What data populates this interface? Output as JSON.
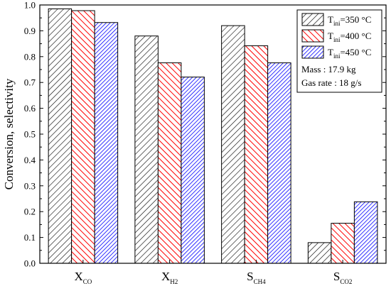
{
  "chart_data": {
    "type": "bar",
    "ylabel": "Conversion, selectivity",
    "ylim": [
      0,
      1.0
    ],
    "yticks": [
      0.0,
      0.1,
      0.2,
      0.3,
      0.4,
      0.5,
      0.6,
      0.7,
      0.8,
      0.9,
      1.0
    ],
    "ytick_labels": [
      "0.0",
      "0.1",
      "0.2",
      "0.3",
      "0.4",
      "0.5",
      "0.6",
      "0.7",
      "0.8",
      "0.9",
      "1.0"
    ],
    "categories": [
      {
        "main": "X",
        "sub": "CO"
      },
      {
        "main": "X",
        "sub": "H2"
      },
      {
        "main": "S",
        "sub": "CH4"
      },
      {
        "main": "S",
        "sub": "CO2"
      }
    ],
    "series": [
      {
        "name": "T_ini=350 °C",
        "label_main": "T",
        "label_sub": "ini",
        "label_rest": "=350 °C",
        "color": "#000000",
        "values": [
          0.985,
          0.88,
          0.92,
          0.08
        ]
      },
      {
        "name": "T_ini=400 °C",
        "label_main": "T",
        "label_sub": "ini",
        "label_rest": "=400 °C",
        "color": "#ff0000",
        "values": [
          0.978,
          0.776,
          0.842,
          0.155
        ]
      },
      {
        "name": "T_ini=450 °C",
        "label_main": "T",
        "label_sub": "ini",
        "label_rest": "=450 °C",
        "color": "#0000ff",
        "values": [
          0.932,
          0.721,
          0.776,
          0.238
        ]
      }
    ],
    "legend_position": "top-right",
    "legend_notes": [
      "Mass : 17.9 kg",
      "Gas rate : 18 g/s"
    ],
    "grid": false
  }
}
